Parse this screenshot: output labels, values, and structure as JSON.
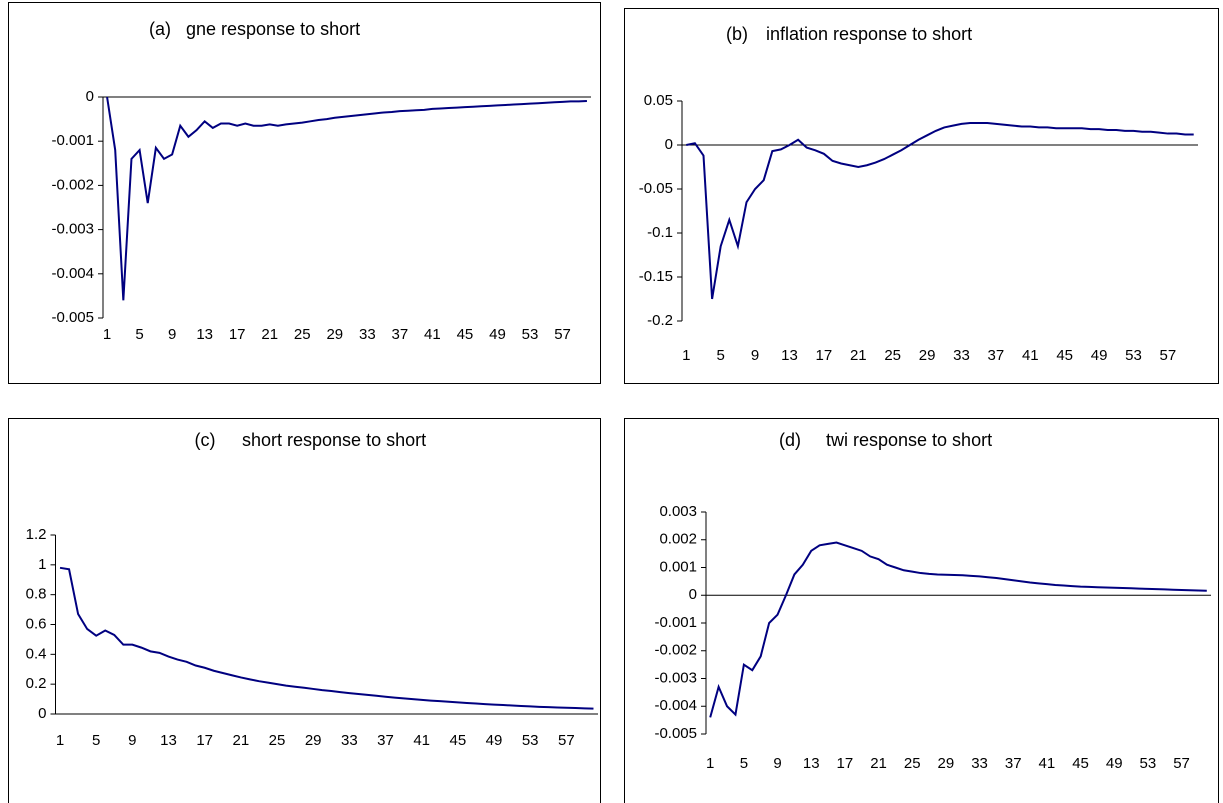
{
  "chart_data": [
    {
      "type": "line",
      "panel": "(a)",
      "title": "gne response to short",
      "color": "#000080",
      "categories": [
        "1",
        null,
        null,
        null,
        "5",
        null,
        null,
        null,
        "9",
        null,
        null,
        null,
        "13",
        null,
        null,
        null,
        "17",
        null,
        null,
        null,
        "21",
        null,
        null,
        null,
        "25",
        null,
        null,
        null,
        "29",
        null,
        null,
        null,
        "33",
        null,
        null,
        null,
        "37",
        null,
        null,
        null,
        "41",
        null,
        null,
        null,
        "45",
        null,
        null,
        null,
        "49",
        null,
        null,
        null,
        "53",
        null,
        null,
        null,
        "57",
        null,
        null,
        null
      ],
      "values": [
        0,
        -0.0012,
        -0.0046,
        -0.0014,
        -0.0012,
        -0.0024,
        -0.00115,
        -0.0014,
        -0.0013,
        -0.00065,
        -0.0009,
        -0.00075,
        -0.00055,
        -0.0007,
        -0.0006,
        -0.0006,
        -0.00065,
        -0.0006,
        -0.00065,
        -0.00065,
        -0.00062,
        -0.00065,
        -0.00062,
        -0.0006,
        -0.00058,
        -0.00055,
        -0.00052,
        -0.0005,
        -0.00047,
        -0.00045,
        -0.00043,
        -0.00041,
        -0.00039,
        -0.00037,
        -0.00035,
        -0.00034,
        -0.00032,
        -0.00031,
        -0.0003,
        -0.00029,
        -0.00027,
        -0.00026,
        -0.00025,
        -0.00024,
        -0.00023,
        -0.00022,
        -0.00021,
        -0.0002,
        -0.00019,
        -0.00018,
        -0.00017,
        -0.00016,
        -0.00015,
        -0.00014,
        -0.00013,
        -0.00012,
        -0.00011,
        -0.0001,
        -0.0001,
        -9e-05
      ],
      "ylim": [
        -0.005,
        0
      ],
      "yticks": [
        0,
        -0.001,
        -0.002,
        -0.003,
        -0.004,
        -0.005
      ]
    },
    {
      "type": "line",
      "panel": "(b)",
      "title": "inflation response to short",
      "color": "#000080",
      "categories": [
        "1",
        null,
        null,
        null,
        "5",
        null,
        null,
        null,
        "9",
        null,
        null,
        null,
        "13",
        null,
        null,
        null,
        "17",
        null,
        null,
        null,
        "21",
        null,
        null,
        null,
        "25",
        null,
        null,
        null,
        "29",
        null,
        null,
        null,
        "33",
        null,
        null,
        null,
        "37",
        null,
        null,
        null,
        "41",
        null,
        null,
        null,
        "45",
        null,
        null,
        null,
        "49",
        null,
        null,
        null,
        "53",
        null,
        null,
        null,
        "57",
        null,
        null,
        null
      ],
      "values": [
        0,
        0.002,
        -0.012,
        -0.175,
        -0.115,
        -0.085,
        -0.115,
        -0.065,
        -0.05,
        -0.04,
        -0.007,
        -0.005,
        0,
        0.006,
        -0.003,
        -0.006,
        -0.01,
        -0.018,
        -0.021,
        -0.023,
        -0.025,
        -0.023,
        -0.02,
        -0.016,
        -0.011,
        -0.006,
        0,
        0.006,
        0.011,
        0.016,
        0.02,
        0.022,
        0.024,
        0.025,
        0.025,
        0.025,
        0.024,
        0.023,
        0.022,
        0.021,
        0.021,
        0.02,
        0.02,
        0.019,
        0.019,
        0.019,
        0.019,
        0.018,
        0.018,
        0.017,
        0.017,
        0.016,
        0.016,
        0.015,
        0.015,
        0.014,
        0.013,
        0.013,
        0.012,
        0.012
      ],
      "ylim": [
        -0.2,
        0.05
      ],
      "yticks": [
        0.05,
        0,
        -0.05,
        -0.1,
        -0.15,
        -0.2
      ]
    },
    {
      "type": "line",
      "panel": "(c)",
      "title": "short response to short",
      "color": "#000080",
      "categories": [
        "1",
        null,
        null,
        null,
        "5",
        null,
        null,
        null,
        "9",
        null,
        null,
        null,
        "13",
        null,
        null,
        null,
        "17",
        null,
        null,
        null,
        "21",
        null,
        null,
        null,
        "25",
        null,
        null,
        null,
        "29",
        null,
        null,
        null,
        "33",
        null,
        null,
        null,
        "37",
        null,
        null,
        null,
        "41",
        null,
        null,
        null,
        "45",
        null,
        null,
        null,
        "49",
        null,
        null,
        null,
        "53",
        null,
        null,
        null,
        "57",
        null,
        null,
        null
      ],
      "values": [
        0.98,
        0.97,
        0.67,
        0.57,
        0.525,
        0.56,
        0.53,
        0.465,
        0.465,
        0.445,
        0.42,
        0.41,
        0.385,
        0.365,
        0.35,
        0.325,
        0.31,
        0.29,
        0.275,
        0.26,
        0.245,
        0.232,
        0.22,
        0.21,
        0.2,
        0.19,
        0.183,
        0.176,
        0.168,
        0.16,
        0.154,
        0.147,
        0.14,
        0.134,
        0.128,
        0.122,
        0.116,
        0.11,
        0.105,
        0.1,
        0.095,
        0.09,
        0.086,
        0.082,
        0.078,
        0.074,
        0.07,
        0.066,
        0.063,
        0.06,
        0.057,
        0.054,
        0.051,
        0.048,
        0.046,
        0.044,
        0.042,
        0.04,
        0.038,
        0.036
      ],
      "ylim": [
        0,
        1.2
      ],
      "yticks": [
        1.2,
        1,
        0.8,
        0.6,
        0.4,
        0.2,
        0
      ]
    },
    {
      "type": "line",
      "panel": "(d)",
      "title": "twi response to short",
      "color": "#000080",
      "categories": [
        "1",
        null,
        null,
        null,
        "5",
        null,
        null,
        null,
        "9",
        null,
        null,
        null,
        "13",
        null,
        null,
        null,
        "17",
        null,
        null,
        null,
        "21",
        null,
        null,
        null,
        "25",
        null,
        null,
        null,
        "29",
        null,
        null,
        null,
        "33",
        null,
        null,
        null,
        "37",
        null,
        null,
        null,
        "41",
        null,
        null,
        null,
        "45",
        null,
        null,
        null,
        "49",
        null,
        null,
        null,
        "53",
        null,
        null,
        null,
        "57",
        null,
        null,
        null
      ],
      "values": [
        -0.0044,
        -0.0033,
        -0.004,
        -0.0043,
        -0.0025,
        -0.0027,
        -0.0022,
        -0.001,
        -0.0007,
        0,
        0.00075,
        0.0011,
        0.0016,
        0.0018,
        0.00185,
        0.0019,
        0.0018,
        0.0017,
        0.0016,
        0.0014,
        0.0013,
        0.0011,
        0.001,
        0.0009,
        0.00085,
        0.0008,
        0.00077,
        0.00075,
        0.00074,
        0.00073,
        0.00072,
        0.0007,
        0.00068,
        0.00065,
        0.00062,
        0.00058,
        0.00054,
        0.0005,
        0.00046,
        0.00043,
        0.0004,
        0.00037,
        0.00035,
        0.00033,
        0.00031,
        0.0003,
        0.00029,
        0.00028,
        0.00027,
        0.00026,
        0.00025,
        0.00024,
        0.00023,
        0.00022,
        0.00021,
        0.0002,
        0.00019,
        0.00018,
        0.00017,
        0.00016
      ],
      "ylim": [
        -0.005,
        0.003
      ],
      "yticks": [
        0.003,
        0.002,
        0.001,
        0,
        -0.001,
        -0.002,
        -0.003,
        -0.004,
        -0.005
      ]
    }
  ]
}
